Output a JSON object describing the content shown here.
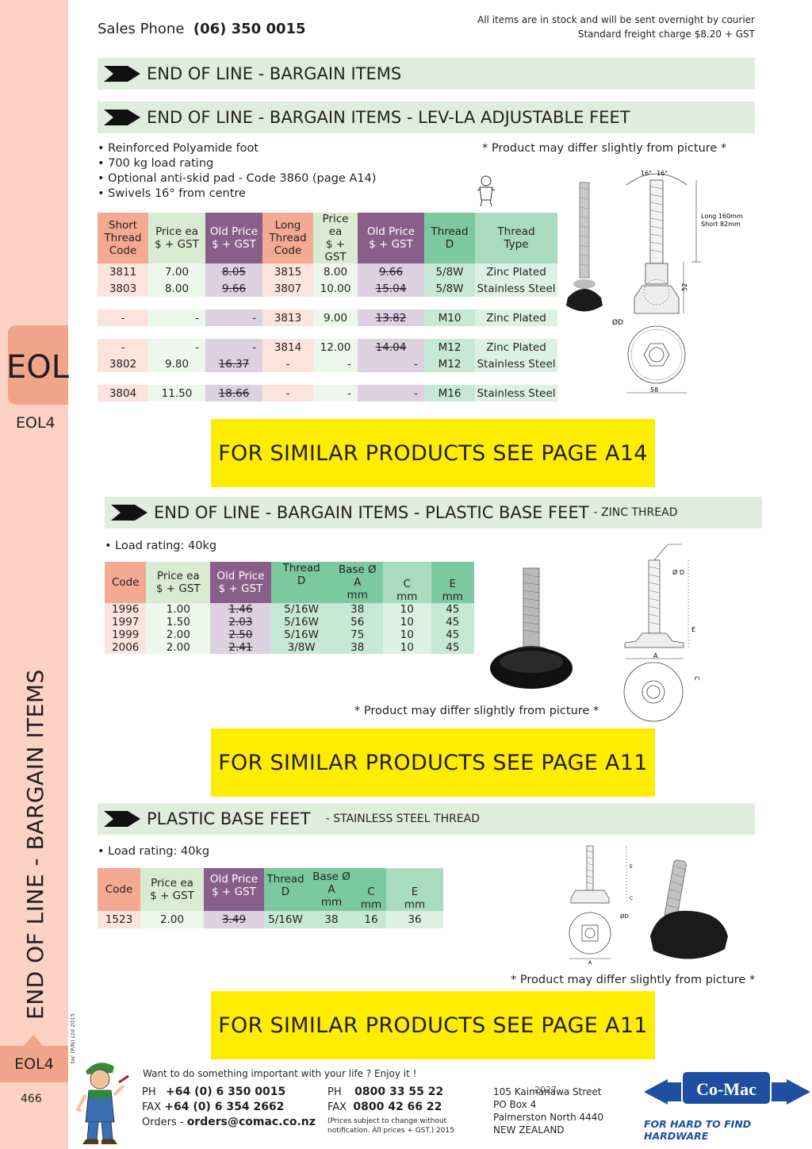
{
  "header": {
    "sales_label": "Sales Phone",
    "sales_phone": "(06) 350 0015",
    "stock_note": "All items are in stock and will be sent overnight by courier",
    "freight_note": "Standard freight charge $8.20 + GST"
  },
  "sidebar": {
    "tab_label": "EOL",
    "tab_sub": "EOL4",
    "vertical_title": "END OF LINE - BARGAIN ITEMS",
    "copyright": "© Co-Mac (P/N) Ltd 2015",
    "bottom_tab": "EOL4",
    "page_number": "466"
  },
  "section1": {
    "title": "END OF  LINE - BARGAIN ITEMS"
  },
  "section2": {
    "title": "END OF  LINE - BARGAIN ITEMS - LEV-LA ADJUSTABLE FEET",
    "bullets": [
      "• Reinforced Polyamide foot",
      "• 700 kg load rating",
      "• Optional anti-skid pad - Code 3860 (page A14)",
      "• Swivels 16° from centre"
    ],
    "note": "* Product may differ slightly from picture *",
    "diagram": {
      "angle_left": "16°",
      "angle_right": "16°",
      "length_note_1": "Long 160mm",
      "length_note_2": "Short 82mm",
      "height": "52",
      "dia_label": "ØD",
      "base": "58"
    },
    "headers": [
      "Short Thread Code",
      "Price ea $ + GST",
      "Old Price $ + GST",
      "Long Thread Code",
      "Price ea $ + GST",
      "Old Price $ + GST",
      "Thread D",
      "Thread Type"
    ],
    "header_lines": [
      [
        "Short",
        "Thread",
        "Code"
      ],
      [
        "Price ea",
        "$ + GST"
      ],
      [
        "Old Price",
        "$ + GST"
      ],
      [
        "Long",
        "Thread",
        "Code"
      ],
      [
        "Price ea",
        "$ + GST"
      ],
      [
        "Old Price",
        "$ + GST"
      ],
      [
        "Thread",
        "D"
      ],
      [
        "Thread",
        "Type"
      ]
    ],
    "rows": [
      [
        "3811",
        "7.00",
        "8.05",
        "3815",
        "8.00",
        "9.66",
        "5/8W",
        "Zinc Plated"
      ],
      [
        "3803",
        "8.00",
        "9.66",
        "3807",
        "10.00",
        "15.04",
        "5/8W",
        "Stainless Steel"
      ],
      [
        "-",
        "-",
        "-",
        "3813",
        "9.00",
        "13.82",
        "M10",
        "Zinc Plated"
      ],
      [
        "-",
        "-",
        "-",
        "3814",
        "12.00",
        "14.04",
        "M12",
        "Zinc Plated"
      ],
      [
        "3802",
        "9.80",
        "16.37",
        "-",
        "-",
        "-",
        "M12",
        "Stainless Steel"
      ],
      [
        "3804",
        "11.50",
        "18.66",
        "-",
        "-",
        "-",
        "M16",
        "Stainless Steel"
      ]
    ],
    "similar": "FOR SIMILAR PRODUCTS SEE PAGE A14"
  },
  "section3": {
    "title": "END OF  LINE - BARGAIN ITEMS - PLASTIC BASE FEET",
    "subtitle": "- ZINC THREAD",
    "bullet": "• Load rating: 40kg",
    "header_lines": [
      [
        "Code"
      ],
      [
        "Price ea",
        "$ + GST"
      ],
      [
        "Old Price",
        "$ + GST"
      ],
      [
        "Thread",
        "D"
      ],
      [
        "Base Ø",
        "A",
        "mm"
      ],
      [
        "C",
        "mm"
      ],
      [
        "E",
        "mm"
      ]
    ],
    "rows": [
      [
        "1996",
        "1.00",
        "1.46",
        "5/16W",
        "38",
        "10",
        "45"
      ],
      [
        "1997",
        "1.50",
        "2.03",
        "5/16W",
        "56",
        "10",
        "45"
      ],
      [
        "1999",
        "2.00",
        "2.50",
        "5/16W",
        "75",
        "10",
        "45"
      ],
      [
        "2006",
        "2.00",
        "2.41",
        "3/8W",
        "38",
        "10",
        "45"
      ]
    ],
    "note": "* Product may differ slightly from picture *",
    "diagram": {
      "d": "Ø D",
      "e": "E",
      "a": "A",
      "c": "C"
    },
    "similar": "FOR SIMILAR PRODUCTS SEE PAGE A11"
  },
  "section4": {
    "title": "PLASTIC BASE FEET",
    "subtitle": "- STAINLESS STEEL THREAD",
    "bullet": "• Load rating: 40kg",
    "header_lines": [
      [
        "Code"
      ],
      [
        "Price ea",
        "$ + GST"
      ],
      [
        "Old Price",
        "$ + GST"
      ],
      [
        "Thread",
        "D"
      ],
      [
        "Base Ø",
        "A",
        "mm"
      ],
      [
        "C",
        "mm"
      ],
      [
        "E",
        "mm"
      ]
    ],
    "rows": [
      [
        "1523",
        "2.00",
        "3.49",
        "5/16W",
        "38",
        "16",
        "36"
      ]
    ],
    "note": "* Product may differ slightly from picture *",
    "diagram": {
      "e": "E",
      "c": "C",
      "d": "ØD",
      "a": "A"
    },
    "similar": "FOR SIMILAR PRODUCTS SEE PAGE A11"
  },
  "footer": {
    "slogan": "Want to do something important with your life ?  Enjoy it !",
    "ph_label": "PH",
    "ph": "+64 (0) 6 350 0015",
    "fax_label": "FAX",
    "fax": "+64 (0) 6 354 2662",
    "orders_label": "Orders -",
    "orders": "orders@comac.co.nz",
    "ph2_label": "PH",
    "ph2": "0800 33 55 22",
    "fax2_label": "FAX",
    "fax2": "0800 42 66 22",
    "prices_note_1": "(Prices subject to change without",
    "prices_note_2": "notification. All prices + GST.)  2015",
    "addr1": "105 Kaimanawa Street",
    "addr1_overlay": "2027",
    "addr2": "PO Box 4",
    "addr3": "Palmerston North 4440",
    "addr4": "NEW ZEALAND",
    "logo": "Co-Mac",
    "tagline": "FOR HARD TO FIND HARDWARE"
  },
  "colors": {
    "band": "#dfeedc",
    "yellow": "#ffed00",
    "sidebar": "#fcd2c4",
    "tab": "#f0a58a",
    "logo_blue": "#1e4fa0"
  }
}
